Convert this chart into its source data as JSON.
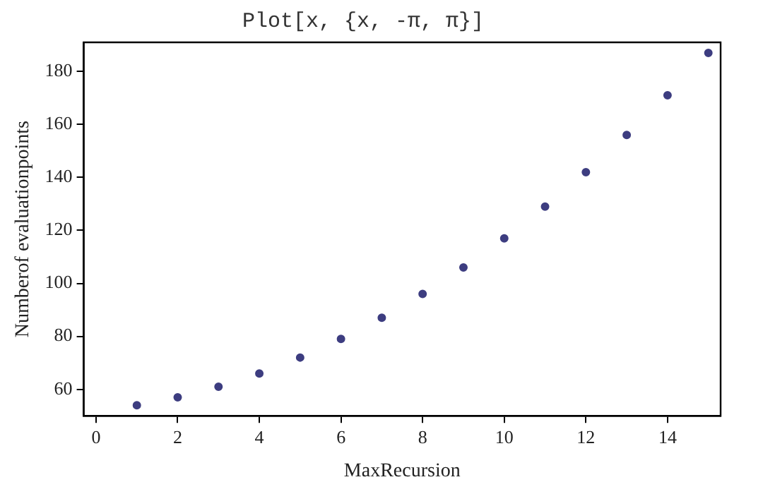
{
  "chart_data": {
    "type": "scatter",
    "title": "Plot[x, {x, -π, π}]",
    "xlabel": "MaxRecursion",
    "ylabel": "Numberof evaluationpoints",
    "x": [
      1,
      2,
      3,
      4,
      5,
      6,
      7,
      8,
      9,
      10,
      11,
      12,
      13,
      14,
      15
    ],
    "series": [
      {
        "color": "#3d3d80",
        "values": [
          54,
          57,
          61,
          66,
          72,
          79,
          87,
          96,
          106,
          117,
          129,
          142,
          156,
          171,
          187
        ]
      }
    ],
    "xlim": [
      -0.3,
      15.3
    ],
    "ylim": [
      50,
      191
    ],
    "xticks": [
      0,
      2,
      4,
      6,
      8,
      10,
      12,
      14
    ],
    "yticks": [
      60,
      80,
      100,
      120,
      140,
      160,
      180
    ],
    "grid": false,
    "legend": false,
    "marker": "circle"
  }
}
